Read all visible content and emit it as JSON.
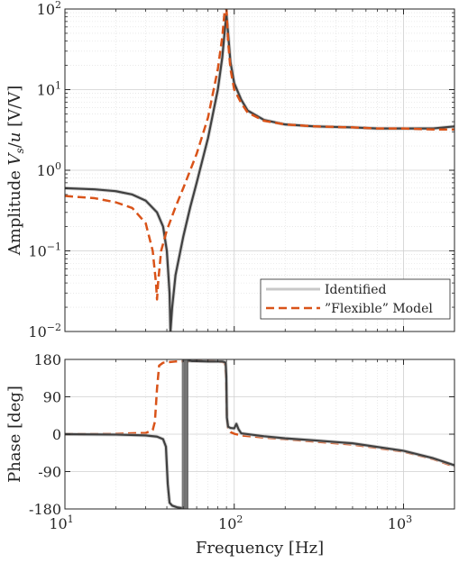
{
  "chart_data": [
    {
      "type": "line",
      "xscale": "log",
      "yscale": "log",
      "xlim": [
        10,
        2000
      ],
      "ylim": [
        0.01,
        100
      ],
      "grid": true,
      "xlabel": "",
      "ylabel": "Amplitude V_s/u [V/V]",
      "ylabel_parts": {
        "prefix": "Amplitude ",
        "v": "V",
        "sub": "s",
        "mid": "/",
        "u": "u",
        "unit": " [V/V]"
      },
      "y_ticks": [
        {
          "value": 0.01,
          "base": "10",
          "exp": "−2"
        },
        {
          "value": 0.1,
          "base": "10",
          "exp": "−1"
        },
        {
          "value": 1,
          "base": "10",
          "exp": "0"
        },
        {
          "value": 10,
          "base": "10",
          "exp": "1"
        },
        {
          "value": 100,
          "base": "10",
          "exp": "2"
        }
      ],
      "legend": {
        "placement": "bottom-right",
        "entries": [
          "Identified",
          "”Flexible” Model"
        ]
      },
      "series": [
        {
          "name": "Identified",
          "color": "#404040",
          "style": "solid",
          "x": [
            10,
            15,
            20,
            25,
            30,
            35,
            38,
            40,
            41.5,
            42,
            43,
            45,
            50,
            55,
            60,
            70,
            80,
            85,
            88,
            90,
            92,
            95,
            100,
            110,
            120,
            150,
            200,
            300,
            500,
            700,
            1000,
            1500,
            2000
          ],
          "y": [
            0.6,
            0.58,
            0.55,
            0.5,
            0.42,
            0.3,
            0.2,
            0.1,
            0.03,
            0.01,
            0.02,
            0.05,
            0.15,
            0.35,
            0.7,
            2.5,
            10,
            25,
            55,
            85,
            50,
            22,
            12,
            7.5,
            5.5,
            4.2,
            3.7,
            3.5,
            3.4,
            3.3,
            3.3,
            3.3,
            3.5
          ]
        },
        {
          "name": "”Flexible” Model",
          "color": "#d95319",
          "style": "dashed",
          "x": [
            10,
            15,
            20,
            25,
            30,
            33,
            34.5,
            35,
            35.5,
            37,
            40,
            45,
            50,
            60,
            70,
            80,
            85,
            88,
            90,
            92,
            95,
            100,
            110,
            120,
            150,
            200,
            300,
            500,
            700,
            1000,
            1500,
            2000
          ],
          "y": [
            0.48,
            0.45,
            0.4,
            0.34,
            0.22,
            0.1,
            0.04,
            0.025,
            0.04,
            0.1,
            0.18,
            0.35,
            0.6,
            1.6,
            4.5,
            18,
            45,
            100,
            100,
            40,
            18,
            10,
            6.8,
            5.2,
            4.1,
            3.7,
            3.5,
            3.4,
            3.3,
            3.3,
            3.2,
            3.2
          ]
        }
      ]
    },
    {
      "type": "line",
      "xscale": "log",
      "xlim": [
        10,
        2000
      ],
      "ylim": [
        -180,
        180
      ],
      "grid": true,
      "xlabel": "Frequency [Hz]",
      "ylabel": "Phase [deg]",
      "x_ticks": [
        {
          "value": 10,
          "base": "10",
          "exp": "1"
        },
        {
          "value": 100,
          "base": "10",
          "exp": "2"
        },
        {
          "value": 1000,
          "base": "10",
          "exp": "3"
        }
      ],
      "y_ticks": [
        {
          "value": 180,
          "label": "180"
        },
        {
          "value": 90,
          "label": "90"
        },
        {
          "value": 0,
          "label": "0"
        },
        {
          "value": -90,
          "label": "-90"
        },
        {
          "value": -180,
          "label": "-180"
        }
      ],
      "series": [
        {
          "name": "Identified",
          "color": "#404040",
          "style": "solid",
          "x": [
            10,
            20,
            30,
            35,
            38,
            39.5,
            40.5,
            41.5,
            43,
            46,
            49.5,
            50.5,
            52,
            54,
            56,
            60,
            70,
            80,
            85,
            87,
            89,
            89.8,
            90.5,
            92,
            95,
            100,
            103,
            106,
            110,
            150,
            200,
            300,
            500,
            1000,
            1500,
            2000
          ],
          "y": [
            0,
            -1,
            -3,
            -6,
            -12,
            -30,
            -120,
            -165,
            -172,
            -176,
            -178,
            178,
            178,
            177,
            176,
            176,
            175,
            175,
            175,
            174,
            172,
            140,
            40,
            18,
            15,
            14,
            25,
            12,
            2,
            -5,
            -10,
            -15,
            -22,
            -40,
            -58,
            -75
          ]
        },
        {
          "name": "”Flexible” Model",
          "color": "#d95319",
          "style": "dashed",
          "x": [
            10,
            20,
            30,
            33,
            34,
            35,
            36,
            38,
            45,
            60,
            70,
            80,
            85,
            88,
            89.5,
            90.5,
            92,
            95,
            100,
            110,
            150,
            200,
            300,
            500,
            1000,
            1500,
            2000
          ],
          "y": [
            0,
            1,
            3,
            10,
            30,
            110,
            165,
            172,
            175,
            176,
            176,
            175,
            174,
            172,
            140,
            40,
            15,
            5,
            1,
            -3,
            -8,
            -12,
            -18,
            -25,
            -42,
            -60,
            -78
          ]
        }
      ]
    }
  ]
}
